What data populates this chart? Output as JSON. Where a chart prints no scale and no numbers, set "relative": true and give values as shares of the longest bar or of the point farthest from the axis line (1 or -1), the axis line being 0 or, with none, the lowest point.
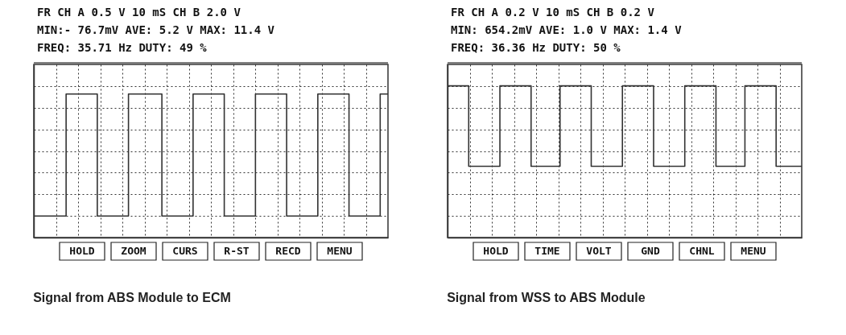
{
  "chart_data": [
    {
      "type": "step",
      "relative": true,
      "grid": true,
      "title": "Signal from ABS Module to ECM",
      "annotations": [
        "FR   CH A 0.5 V   10 mS   CH B 2.0 V",
        "MIN:- 76.7mV AVE:    5.2 V  MAX:   11.4 V",
        "FREQ:    35.71  Hz   DUTY: 49 %",
        "HOLD",
        "ZOOM",
        "CURS",
        "R-ST",
        "RECD",
        "MENU"
      ],
      "categories": [
        null,
        null,
        null,
        null,
        null,
        null,
        null,
        null,
        null,
        null,
        null,
        null,
        null,
        null,
        null,
        null,
        null,
        null,
        null,
        null,
        null,
        null,
        null,
        null,
        null,
        null,
        null,
        null,
        null,
        null,
        null,
        null,
        null,
        null,
        null,
        null,
        null,
        null,
        null,
        null,
        null,
        null,
        null,
        null,
        null,
        null,
        null,
        null,
        null,
        null,
        null,
        null,
        null,
        null,
        null,
        null,
        null,
        null,
        null,
        null,
        null,
        null,
        null,
        null,
        null,
        null,
        null,
        null,
        null,
        null,
        null,
        null,
        null,
        null,
        null,
        null,
        null,
        null,
        null,
        null,
        null,
        null,
        null,
        null,
        null,
        null,
        null,
        null,
        null,
        null,
        null,
        null,
        null,
        null,
        null,
        null,
        null,
        null,
        null,
        null,
        null,
        null,
        null,
        null,
        null,
        null,
        null,
        null,
        null,
        null,
        null,
        null,
        null,
        null,
        null,
        null,
        null,
        null,
        null,
        null,
        null,
        null,
        null,
        null,
        null,
        null,
        null,
        null,
        null,
        null,
        null,
        null,
        null,
        null,
        null,
        null,
        null,
        null,
        null,
        null,
        null,
        null,
        null,
        null,
        null,
        null,
        null,
        null,
        null,
        null,
        null,
        null,
        null,
        null,
        null,
        null,
        null,
        null,
        null,
        null
      ],
      "series": [
        {
          "color": "#333333",
          "values": [
            0.15,
            0.15,
            0.15,
            0.15,
            0.15,
            0.15,
            0.15,
            0.15,
            0.15,
            0.15,
            0.15,
            0.15,
            0.15,
            0.15,
            0.15,
            1,
            1,
            1,
            1,
            1,
            1,
            1,
            1,
            1,
            1,
            1,
            1,
            1,
            1,
            0.15,
            0.15,
            0.15,
            0.15,
            0.15,
            0.15,
            0.15,
            0.15,
            0.15,
            0.15,
            0.15,
            0.15,
            0.15,
            0.15,
            1,
            1,
            1,
            1,
            1,
            1,
            1,
            1,
            1,
            1,
            1,
            1,
            1,
            1,
            1,
            0.15,
            0.15,
            0.15,
            0.15,
            0.15,
            0.15,
            0.15,
            0.15,
            0.15,
            0.15,
            0.15,
            0.15,
            0.15,
            0.15,
            1,
            1,
            1,
            1,
            1,
            1,
            1,
            1,
            1,
            1,
            1,
            1,
            1,
            1,
            0.15,
            0.15,
            0.15,
            0.15,
            0.15,
            0.15,
            0.15,
            0.15,
            0.15,
            0.15,
            0.15,
            0.15,
            0.15,
            0.15,
            1,
            1,
            1,
            1,
            1,
            1,
            1,
            1,
            1,
            1,
            1,
            1,
            1,
            1,
            0.15,
            0.15,
            0.15,
            0.15,
            0.15,
            0.15,
            0.15,
            0.15,
            0.15,
            0.15,
            0.15,
            0.15,
            0.15,
            0.15,
            1,
            1,
            1,
            1,
            1,
            1,
            1,
            1,
            1,
            1,
            1,
            1,
            1,
            1,
            0.15,
            0.15,
            0.15,
            0.15,
            0.15,
            0.15,
            0.15,
            0.15,
            0.15,
            0.15,
            0.15,
            0.15,
            0.15,
            0.15,
            1,
            1,
            1,
            1
          ]
        }
      ]
    },
    {
      "type": "step",
      "relative": true,
      "grid": true,
      "title": "Signal from WSS to ABS Module",
      "annotations": [
        "FR   CH A 0.2 V   10 mS   CH B 0.2 V",
        "MIN: 654.2mV AVE:    1.0 V  MAX:    1.4 V",
        "FREQ:    36.36  Hz   DUTY: 50 %",
        "HOLD",
        "TIME",
        "VOLT",
        "GND",
        "CHNL",
        "MENU"
      ],
      "categories": [
        null,
        null,
        null,
        null,
        null,
        null,
        null,
        null,
        null,
        null,
        null,
        null,
        null,
        null,
        null,
        null,
        null,
        null,
        null,
        null,
        null,
        null,
        null,
        null,
        null,
        null,
        null,
        null,
        null,
        null,
        null,
        null,
        null,
        null,
        null,
        null,
        null,
        null,
        null,
        null,
        null,
        null,
        null,
        null,
        null,
        null,
        null,
        null,
        null,
        null,
        null,
        null,
        null,
        null,
        null,
        null,
        null,
        null,
        null,
        null,
        null,
        null,
        null,
        null,
        null,
        null,
        null,
        null,
        null,
        null,
        null,
        null,
        null,
        null,
        null,
        null,
        null,
        null,
        null,
        null,
        null,
        null,
        null,
        null,
        null,
        null,
        null,
        null,
        null,
        null,
        null,
        null,
        null,
        null,
        null,
        null,
        null,
        null,
        null,
        null,
        null,
        null,
        null,
        null,
        null,
        null,
        null,
        null,
        null,
        null,
        null,
        null,
        null,
        null,
        null,
        null,
        null,
        null,
        null,
        null,
        null,
        null,
        null,
        null,
        null,
        null,
        null,
        null,
        null,
        null,
        null,
        null,
        null,
        null,
        null,
        null,
        null,
        null,
        null,
        null,
        null,
        null,
        null,
        null,
        null,
        null,
        null,
        null,
        null,
        null,
        null,
        null,
        null,
        null,
        null,
        null,
        null,
        null,
        null,
        null
      ],
      "series": [
        {
          "color": "#333333",
          "values": [
            1,
            1,
            1,
            1,
            1,
            1,
            1,
            1,
            1,
            1,
            0.47,
            0.47,
            0.47,
            0.47,
            0.47,
            0.47,
            0.47,
            0.47,
            0.47,
            0.47,
            0.47,
            0.47,
            0.47,
            0.47,
            1,
            1,
            1,
            1,
            1,
            1,
            1,
            1,
            1,
            1,
            1,
            1,
            1,
            1,
            0.47,
            0.47,
            0.47,
            0.47,
            0.47,
            0.47,
            0.47,
            0.47,
            0.47,
            0.47,
            0.47,
            0.47,
            0.47,
            1,
            1,
            1,
            1,
            1,
            1,
            1,
            1,
            1,
            1,
            1,
            1,
            1,
            1,
            0.47,
            0.47,
            0.47,
            0.47,
            0.47,
            0.47,
            0.47,
            0.47,
            0.47,
            0.47,
            0.47,
            0.47,
            0.47,
            0.47,
            1,
            1,
            1,
            1,
            1,
            1,
            1,
            1,
            1,
            1,
            1,
            1,
            1,
            1,
            0.47,
            0.47,
            0.47,
            0.47,
            0.47,
            0.47,
            0.47,
            0.47,
            0.47,
            0.47,
            0.47,
            0.47,
            0.47,
            0.47,
            1,
            1,
            1,
            1,
            1,
            1,
            1,
            1,
            1,
            1,
            1,
            1,
            1,
            1,
            0.47,
            0.47,
            0.47,
            0.47,
            0.47,
            0.47,
            0.47,
            0.47,
            0.47,
            0.47,
            0.47,
            0.47,
            0.47,
            1,
            1,
            1,
            1,
            1,
            1,
            1,
            1,
            1,
            1,
            1,
            1,
            1,
            1,
            0.47,
            0.47,
            0.47,
            0.47,
            0.47,
            0.47,
            0.47,
            0.47,
            0.47,
            0.47,
            0.47,
            0.47
          ]
        }
      ]
    }
  ]
}
